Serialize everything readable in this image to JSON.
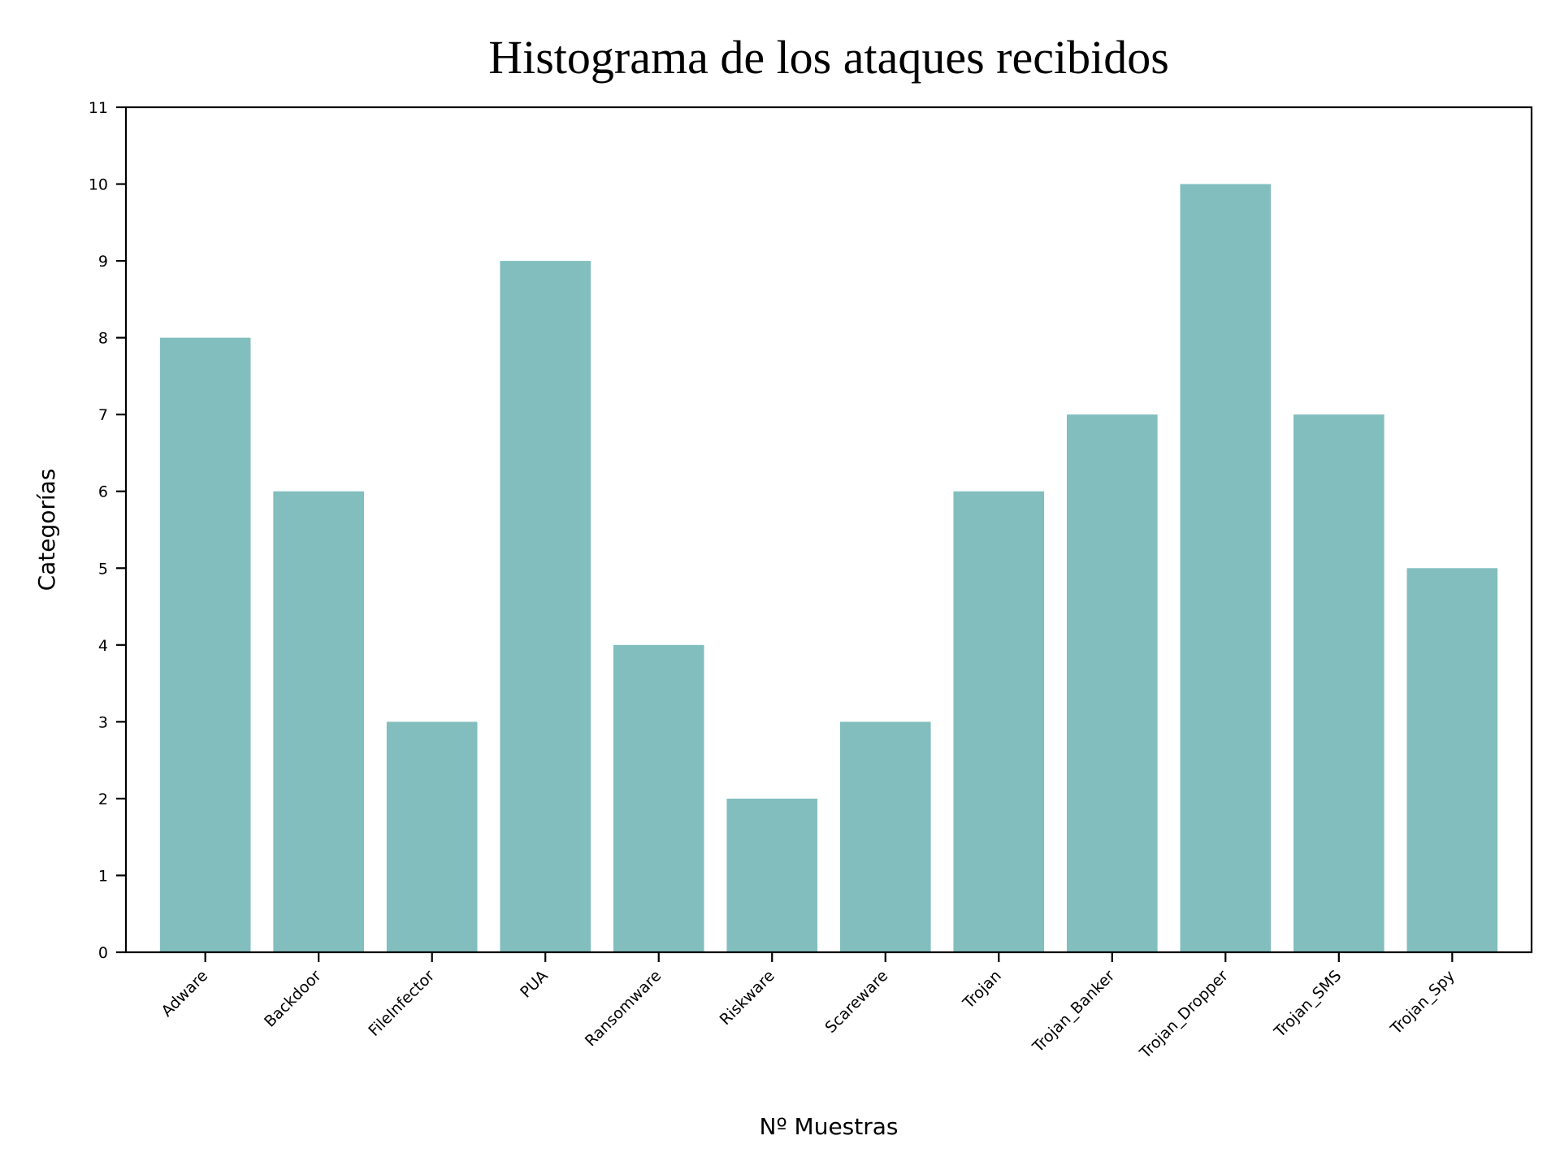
{
  "chart_data": {
    "type": "bar",
    "title": "Histograma de los ataques recibidos",
    "xlabel": "Nº Muestras",
    "ylabel": "Categorías",
    "categories": [
      "Adware",
      "Backdoor",
      "FileInfector",
      "PUA",
      "Ransomware",
      "Riskware",
      "Scareware",
      "Trojan",
      "Trojan_Banker",
      "Trojan_Dropper",
      "Trojan_SMS",
      "Trojan_Spy"
    ],
    "values": [
      8,
      6,
      3,
      9,
      4,
      2,
      3,
      6,
      7,
      10,
      7,
      5
    ],
    "ylim": [
      0,
      11
    ],
    "yticks": [
      0,
      1,
      2,
      3,
      4,
      5,
      6,
      7,
      8,
      9,
      10,
      11
    ],
    "bar_color": "#82bebe",
    "grid": false,
    "legend": "none"
  }
}
